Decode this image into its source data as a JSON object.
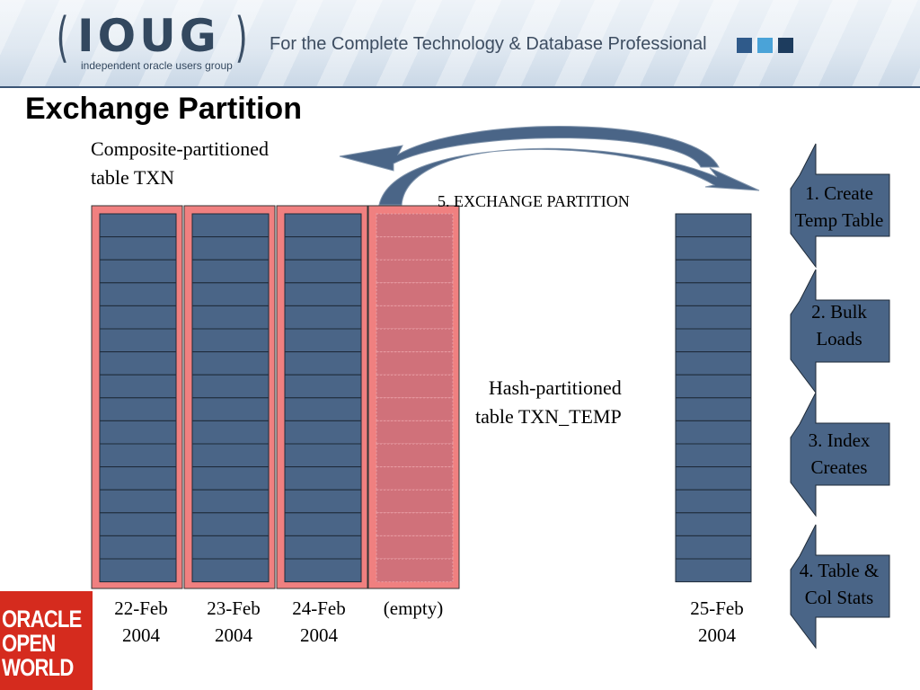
{
  "header": {
    "logo_word": "IOUG",
    "logo_subtitle": "independent oracle users group",
    "tagline": "For the Complete Technology & Database Professional",
    "accent_colors": [
      "#2f5a8a",
      "#4aa3d8",
      "#1d3c5e"
    ]
  },
  "slide": {
    "title": "Exchange Partition"
  },
  "diagram": {
    "composite_label_line1": "Composite-partitioned",
    "composite_label_line2": "table TXN",
    "hash_label_line1": "Hash-partitioned",
    "hash_label_line2": "table TXN_TEMP",
    "exchange_label": "5. EXCHANGE PARTITION",
    "partitions": [
      {
        "date_line1": "22-Feb",
        "date_line2": "2004",
        "empty": false
      },
      {
        "date_line1": "23-Feb",
        "date_line2": "2004",
        "empty": false
      },
      {
        "date_line1": "24-Feb",
        "date_line2": "2004",
        "empty": false
      },
      {
        "date_line1": "(empty)",
        "date_line2": "",
        "empty": true
      }
    ],
    "temp_table": {
      "date_line1": "25-Feb",
      "date_line2": "2004"
    },
    "subpartitions_per_partition": 16,
    "steps": [
      {
        "line1": "1. Create",
        "line2": "Temp Table"
      },
      {
        "line1": "2. Bulk",
        "line2": "Loads"
      },
      {
        "line1": "3. Index",
        "line2": "Creates"
      },
      {
        "line1": "4. Table &",
        "line2": "Col Stats"
      }
    ],
    "colors": {
      "partition_outer": "#f08080",
      "subpartition_fill": "#4a6587",
      "empty_fill": "#d0717a",
      "arrow_fill": "#4a6587",
      "step_fill": "#4a6587"
    }
  },
  "footer_logo": {
    "line1": "ORACLE",
    "line2": "OPEN",
    "line3": "WORLD",
    "color": "#d52b1e"
  }
}
